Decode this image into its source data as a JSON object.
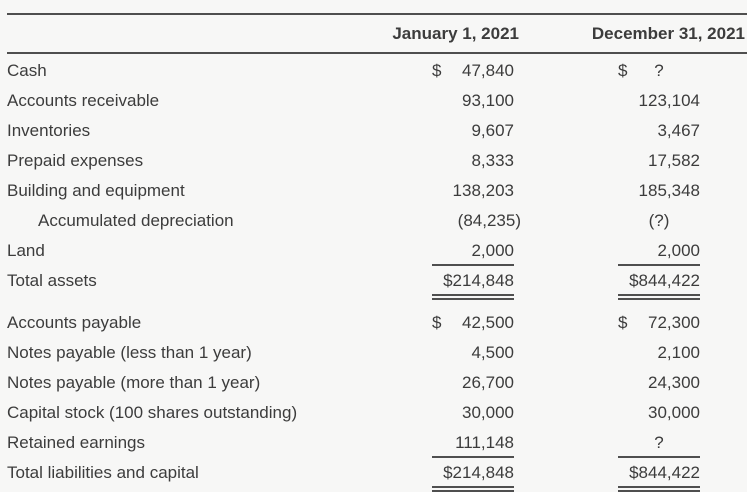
{
  "header": {
    "col1": "January 1, 2021",
    "col2": "December 31, 2021"
  },
  "rows": [
    {
      "label": "Cash",
      "c1": "$",
      "v1": "47,840",
      "c2": "$",
      "v2": "?",
      "center2": true
    },
    {
      "label": "Accounts receivable",
      "v1": "93,100",
      "v2": "123,104"
    },
    {
      "label": "Inventories",
      "v1": "9,607",
      "v2": "3,467"
    },
    {
      "label": "Prepaid expenses",
      "v1": "8,333",
      "v2": "17,582"
    },
    {
      "label": "Building and equipment",
      "v1": "138,203",
      "v2": "185,348"
    },
    {
      "label": "Accumulated depreciation",
      "indent": true,
      "v1": "(84,235)",
      "v2": "(?)",
      "center2": true
    },
    {
      "label": "Land",
      "v1": "2,000",
      "v2": "2,000",
      "underline": "single"
    },
    {
      "label": "Total assets",
      "v1": "$214,848",
      "v2": "$844,422",
      "underline": "double",
      "gap_after": true
    },
    {
      "label": "Accounts payable",
      "c1": "$",
      "v1": "42,500",
      "c2": "$",
      "v2": "72,300"
    },
    {
      "label": "Notes payable (less than 1 year)",
      "v1": "4,500",
      "v2": "2,100"
    },
    {
      "label": "Notes payable (more than 1 year)",
      "v1": "26,700",
      "v2": "24,300"
    },
    {
      "label": "Capital stock (100 shares outstanding)",
      "v1": "30,000",
      "v2": "30,000"
    },
    {
      "label": "Retained earnings",
      "v1": "111,148",
      "v2": "?",
      "center2": true,
      "underline": "single"
    },
    {
      "label": "Total liabilities and capital",
      "v1": "$214,848",
      "v2": "$844,422",
      "underline": "double"
    }
  ],
  "colors": {
    "rule": "#4f4f4f",
    "text": "#3c3c3c",
    "background": "#f7f7f6"
  }
}
